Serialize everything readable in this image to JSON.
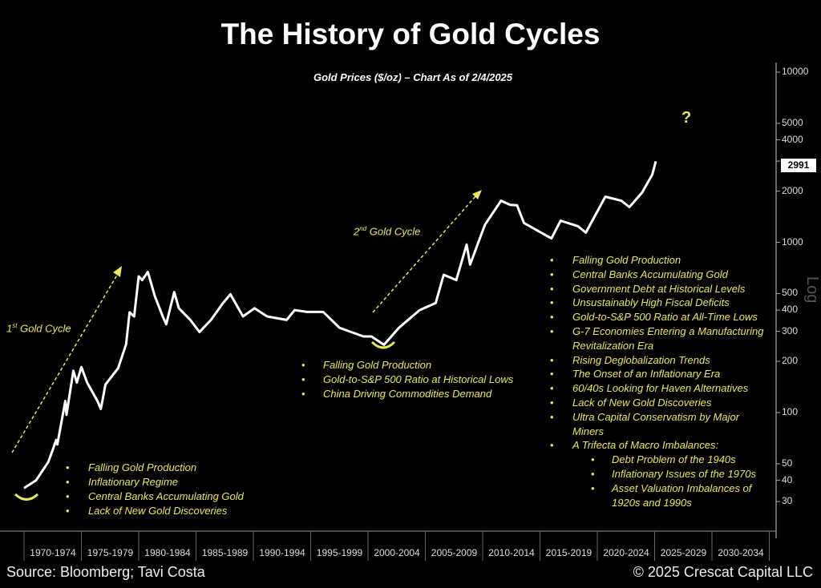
{
  "title": "The History of Gold Cycles",
  "subtitle": "Gold Prices ($/oz) – Chart As of 2/4/2025",
  "source": "Source: Bloomberg; Tavi Costa",
  "copyright": "© 2025 Crescat Capital LLC",
  "colors": {
    "background": "#000000",
    "line": "#ffffff",
    "annotation": "#e8e85a"
  },
  "chart_data": {
    "type": "line",
    "title": "Gold Prices ($/oz) – Chart As of 2/4/2025",
    "yscale": "log",
    "ylim": [
      18,
      11000
    ],
    "xlim": [
      1970,
      2035
    ],
    "yaxis_label": "Log",
    "yticks": [
      "10000",
      "5000",
      "4000",
      "3000",
      "2000",
      "1000",
      "500",
      "400",
      "300",
      "200",
      "100",
      "50",
      "40",
      "30"
    ],
    "categories": [
      "1970-1974",
      "1975-1979",
      "1980-1984",
      "1985-1989",
      "1990-1994",
      "1995-1999",
      "2000-2004",
      "2005-2009",
      "2010-2014",
      "2015-2019",
      "2020-2024",
      "2025-2029",
      "2030-2034"
    ],
    "last_value_label": "2991",
    "series": [
      {
        "points": [
          [
            1970.0,
            36
          ],
          [
            1971.05,
            40
          ],
          [
            1972.1,
            51
          ],
          [
            1972.45,
            59
          ],
          [
            1972.8,
            69
          ],
          [
            1972.9,
            65
          ],
          [
            1973.6,
            117
          ],
          [
            1973.7,
            97
          ],
          [
            1974.3,
            176
          ],
          [
            1974.6,
            150
          ],
          [
            1975.0,
            185
          ],
          [
            1975.5,
            150
          ],
          [
            1976.4,
            117
          ],
          [
            1976.7,
            105
          ],
          [
            1977.1,
            146
          ],
          [
            1978.2,
            182
          ],
          [
            1978.9,
            252
          ],
          [
            1979.2,
            388
          ],
          [
            1979.6,
            367
          ],
          [
            1980.0,
            631
          ],
          [
            1980.3,
            600
          ],
          [
            1980.8,
            670
          ],
          [
            1981.4,
            485
          ],
          [
            1982.1,
            367
          ],
          [
            1982.4,
            330
          ],
          [
            1983.1,
            510
          ],
          [
            1983.5,
            410
          ],
          [
            1984.5,
            350
          ],
          [
            1985.3,
            297
          ],
          [
            1986.3,
            350
          ],
          [
            1987.3,
            435
          ],
          [
            1988.0,
            495
          ],
          [
            1989.1,
            367
          ],
          [
            1990.1,
            410
          ],
          [
            1991.2,
            367
          ],
          [
            1992.9,
            350
          ],
          [
            1993.6,
            400
          ],
          [
            1994.7,
            390
          ],
          [
            1996.1,
            390
          ],
          [
            1997.5,
            315
          ],
          [
            1999.6,
            280
          ],
          [
            2000.3,
            280
          ],
          [
            2001.4,
            250
          ],
          [
            2002.7,
            315
          ],
          [
            2004.5,
            400
          ],
          [
            2005.9,
            440
          ],
          [
            2006.6,
            645
          ],
          [
            2007.7,
            600
          ],
          [
            2008.6,
            970
          ],
          [
            2008.9,
            740
          ],
          [
            2010.2,
            1270
          ],
          [
            2011.6,
            1755
          ],
          [
            2012.4,
            1660
          ],
          [
            2013.0,
            1650
          ],
          [
            2013.6,
            1300
          ],
          [
            2015.1,
            1140
          ],
          [
            2016.0,
            1055
          ],
          [
            2016.8,
            1340
          ],
          [
            2018.3,
            1245
          ],
          [
            2019.0,
            1140
          ],
          [
            2020.7,
            1855
          ],
          [
            2022.1,
            1755
          ],
          [
            2022.8,
            1610
          ],
          [
            2023.9,
            1960
          ],
          [
            2024.8,
            2500
          ],
          [
            2025.1,
            2991
          ]
        ]
      }
    ]
  },
  "annotations": {
    "cycle1": {
      "num": "1",
      "sup": "st",
      "text": " Gold Cycle"
    },
    "cycle2": {
      "num": "2",
      "sup": "nd",
      "text": " Gold Cycle"
    },
    "question": "?",
    "bullet": "•",
    "list1": [
      "Falling Gold Production",
      "Inflationary Regime",
      "Central Banks Accumulating Gold",
      "Lack of New Gold Discoveries"
    ],
    "list2": [
      "Falling Gold Production",
      "Gold-to-S&P 500 Ratio at Historical Lows",
      "China Driving Commodities Demand"
    ],
    "list3": [
      "Falling Gold Production",
      "Central Banks Accumulating Gold",
      "Government Debt at Historical Levels",
      "Unsustainably High Fiscal Deficits",
      "Gold-to-S&P 500 Ratio at All-Time Lows",
      "G-7 Economies Entering a Manufacturing\nRevitalization Era",
      "Rising Deglobalization Trends",
      "The Onset of an Inflationary Era",
      "60/40s Looking for Haven Alternatives",
      "Lack of New Gold Discoveries",
      "Ultra Capital Conservatism by Major\nMiners",
      "A Trifecta of Macro Imbalances:"
    ],
    "list3_sub": [
      "Debt Problem of the 1940s",
      "Inflationary Issues of the 1970s",
      "Asset Valuation Imbalances of\n1920s and 1990s"
    ]
  }
}
